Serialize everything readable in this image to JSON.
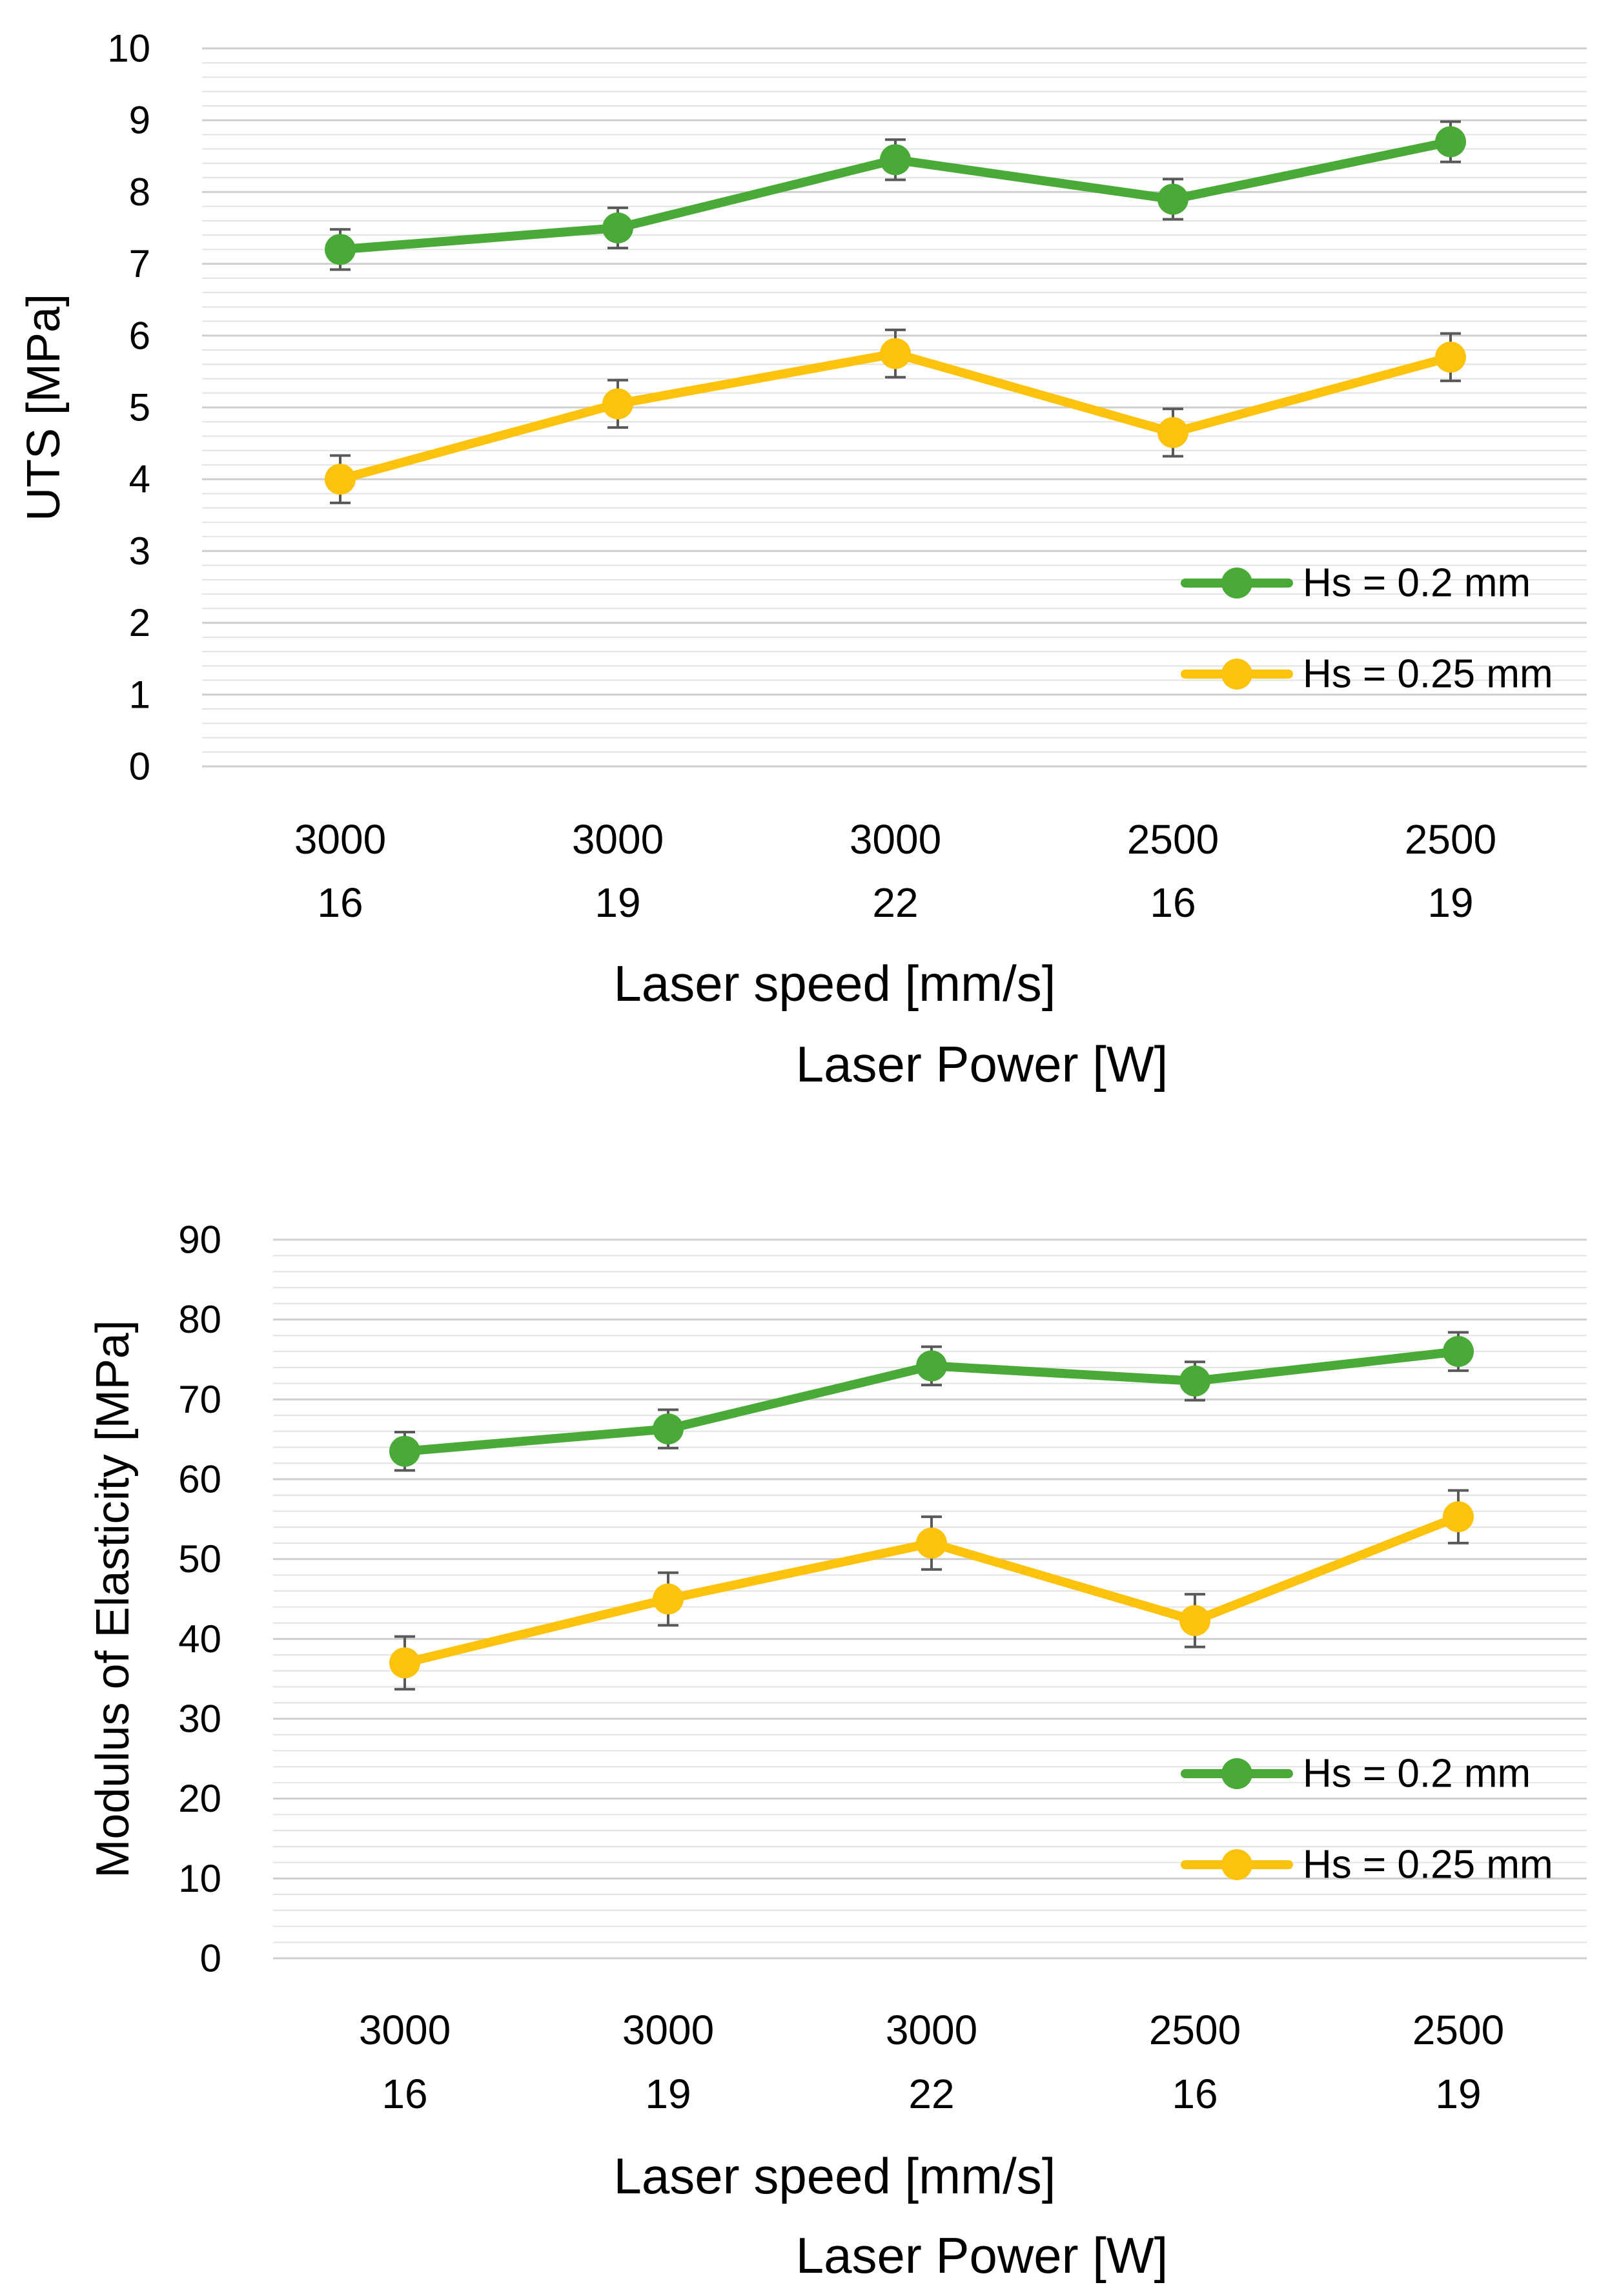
{
  "chart_data": [
    {
      "type": "line",
      "title": "",
      "categories": [
        [
          "3000",
          "16"
        ],
        [
          "3000",
          "19"
        ],
        [
          "3000",
          "22"
        ],
        [
          "2500",
          "16"
        ],
        [
          "2500",
          "19"
        ]
      ],
      "xlabel": [
        "Laser speed [mm/s]",
        "Laser Power [W]"
      ],
      "ylabel": "UTS [MPa]",
      "ylim": [
        0,
        10
      ],
      "yticks": [
        0,
        1,
        2,
        3,
        4,
        5,
        6,
        7,
        8,
        9,
        10
      ],
      "yticklabels": [
        "0",
        "1",
        "2",
        "3",
        "4",
        "5",
        "6",
        "7",
        "8",
        "9",
        "10"
      ],
      "grid": true,
      "legend": "bottom-right",
      "series": [
        {
          "name": "Hs = 0.2 mm",
          "color": "#4aaa38",
          "values": [
            7.2,
            7.5,
            8.45,
            7.9,
            8.7
          ],
          "errors": [
            0.28,
            0.28,
            0.28,
            0.28,
            0.28
          ]
        },
        {
          "name": "Hs = 0.25 mm",
          "color": "#fbc30e",
          "values": [
            4.0,
            5.05,
            5.75,
            4.65,
            5.7
          ],
          "errors": [
            0.33,
            0.33,
            0.33,
            0.33,
            0.33
          ]
        }
      ]
    },
    {
      "type": "line",
      "title": "",
      "categories": [
        [
          "3000",
          "16"
        ],
        [
          "3000",
          "19"
        ],
        [
          "3000",
          "22"
        ],
        [
          "2500",
          "16"
        ],
        [
          "2500",
          "19"
        ]
      ],
      "xlabel": [
        "Laser speed [mm/s]",
        "Laser Power [W]"
      ],
      "ylabel": "Modulus of Elasticity [MPa]",
      "ylim": [
        0,
        90
      ],
      "yticks": [
        0,
        10,
        20,
        30,
        40,
        50,
        60,
        70,
        80,
        90
      ],
      "yticklabels": [
        "0",
        "10",
        "20",
        "30",
        "40",
        "50",
        "60",
        "70",
        "80",
        "90"
      ],
      "grid": true,
      "legend": "bottom-right",
      "series": [
        {
          "name": "Hs = 0.2 mm",
          "color": "#4aaa38",
          "values": [
            63.5,
            66.3,
            74.2,
            72.3,
            76.0
          ],
          "errors": [
            2.4,
            2.4,
            2.4,
            2.4,
            2.4
          ]
        },
        {
          "name": "Hs = 0.25 mm",
          "color": "#fbc30e",
          "values": [
            37.0,
            45.0,
            52.0,
            42.3,
            55.3
          ],
          "errors": [
            3.3,
            3.3,
            3.3,
            3.3,
            3.3
          ]
        }
      ]
    }
  ]
}
